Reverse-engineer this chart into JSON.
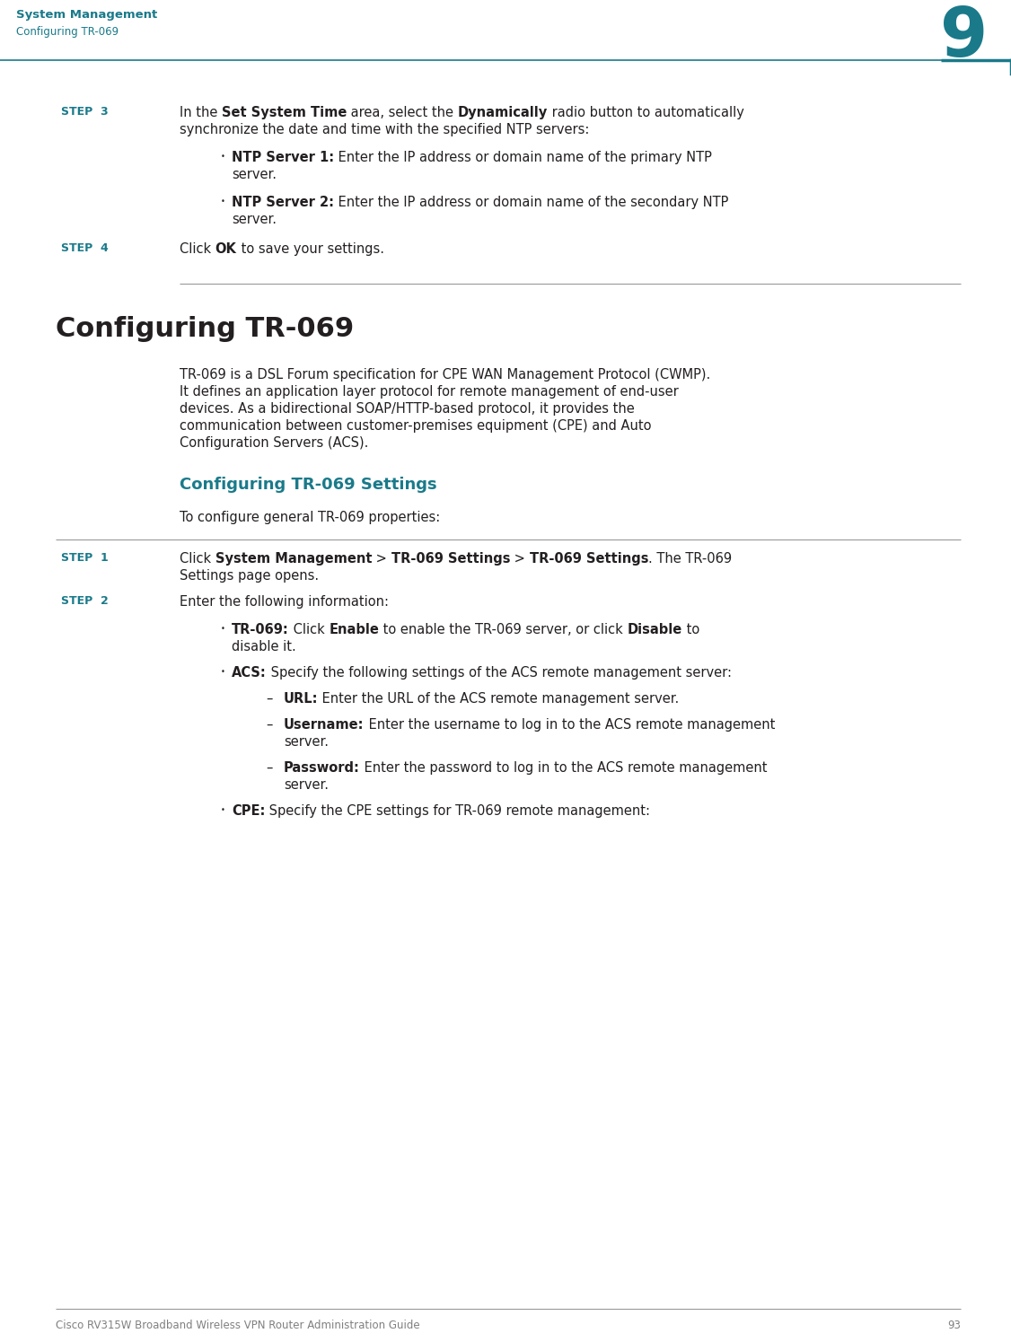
{
  "bg_color": "#ffffff",
  "teal_color": "#1a7a8a",
  "black_color": "#231F20",
  "gray_color": "#808080",
  "light_gray": "#999999",
  "chapter_num": "9",
  "header_title": "System Management",
  "header_subtitle": "Configuring TR-069",
  "footer_text": "Cisco RV315W Broadband Wireless VPN Router Administration Guide",
  "footer_page": "93",
  "section_title": "Configuring TR-069",
  "subsection_title": "Configuring TR-069 Settings",
  "subsection_intro": "To configure general TR-069 properties:"
}
